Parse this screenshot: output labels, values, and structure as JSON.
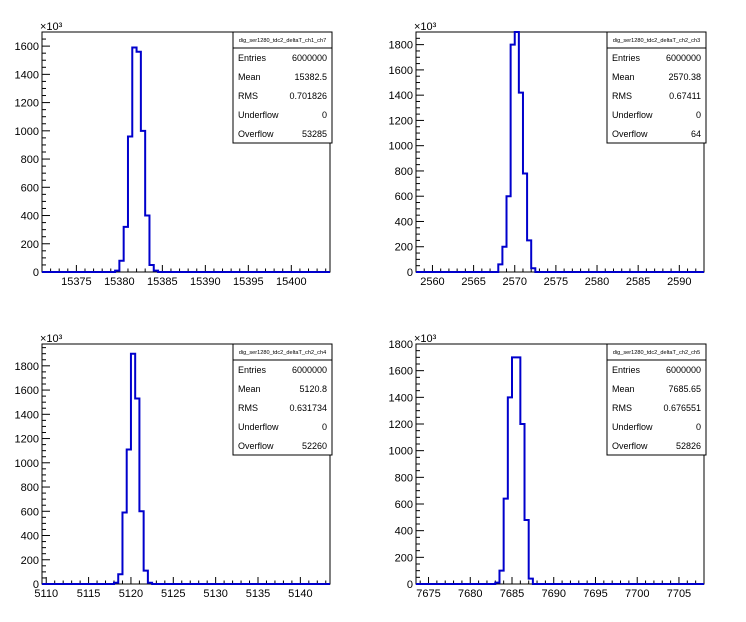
{
  "chart_data": [
    {
      "type": "histogram",
      "stats": {
        "title": "dig_ser1280_tdc2_deltaT_ch1_ch7",
        "rows": [
          {
            "label": "Entries",
            "value": "6000000"
          },
          {
            "label": "Mean",
            "value": "15382.5"
          },
          {
            "label": "RMS",
            "value": "0.701826"
          },
          {
            "label": "Underflow",
            "value": "0"
          },
          {
            "label": "Overflow",
            "value": "53285"
          }
        ]
      },
      "xlim": [
        15371,
        15404.5
      ],
      "ylim": [
        0,
        1700
      ],
      "y_multiplier_label": "×10³",
      "x_ticks": [
        15375,
        15380,
        15385,
        15390,
        15395,
        15400
      ],
      "y_ticks": [
        0,
        200,
        400,
        600,
        800,
        1000,
        1200,
        1400,
        1600
      ],
      "bin_width": 0.5,
      "bins_x0": [
        15379.5,
        15380,
        15380.5,
        15381,
        15381.5,
        15382,
        15382.5,
        15383,
        15383.5,
        15384,
        15384.5
      ],
      "bins_y": [
        10,
        80,
        320,
        960,
        1590,
        1560,
        1000,
        400,
        50,
        10,
        0
      ],
      "line_color": "#0000cc"
    },
    {
      "type": "histogram",
      "stats": {
        "title": "dig_ser1280_tdc2_deltaT_ch2_ch3",
        "rows": [
          {
            "label": "Entries",
            "value": "6000000"
          },
          {
            "label": "Mean",
            "value": "2570.38"
          },
          {
            "label": "RMS",
            "value": "0.67411"
          },
          {
            "label": "Underflow",
            "value": "0"
          },
          {
            "label": "Overflow",
            "value": "64"
          }
        ]
      },
      "xlim": [
        2558,
        2593
      ],
      "ylim": [
        0,
        1900
      ],
      "y_multiplier_label": "×10³",
      "x_ticks": [
        2560,
        2565,
        2570,
        2575,
        2580,
        2585,
        2590
      ],
      "y_ticks": [
        0,
        200,
        400,
        600,
        800,
        1000,
        1200,
        1400,
        1600,
        1800
      ],
      "bin_width": 0.5,
      "bins_x0": [
        2568,
        2568.5,
        2569,
        2569.5,
        2570,
        2570.5,
        2571,
        2571.5,
        2572,
        2572.5
      ],
      "bins_y": [
        60,
        200,
        600,
        1800,
        1900,
        1420,
        780,
        250,
        30,
        0
      ],
      "line_color": "#0000cc"
    },
    {
      "type": "histogram",
      "stats": {
        "title": "dig_ser1280_tdc2_deltaT_ch2_ch4",
        "rows": [
          {
            "label": "Entries",
            "value": "6000000"
          },
          {
            "label": "Mean",
            "value": "5120.8"
          },
          {
            "label": "RMS",
            "value": "0.631734"
          },
          {
            "label": "Underflow",
            "value": "0"
          },
          {
            "label": "Overflow",
            "value": "52260"
          }
        ]
      },
      "xlim": [
        5109.5,
        5143.5
      ],
      "ylim": [
        0,
        1980
      ],
      "y_multiplier_label": "×10³",
      "x_ticks": [
        5110,
        5115,
        5120,
        5125,
        5130,
        5135,
        5140
      ],
      "y_ticks": [
        0,
        200,
        400,
        600,
        800,
        1000,
        1200,
        1400,
        1600,
        1800
      ],
      "bin_width": 0.5,
      "bins_x0": [
        5118,
        5118.5,
        5119,
        5119.5,
        5120,
        5120.5,
        5121,
        5121.5,
        5122,
        5122.5
      ],
      "bins_y": [
        10,
        80,
        590,
        1110,
        1900,
        1530,
        600,
        110,
        10,
        0
      ],
      "line_color": "#0000cc"
    },
    {
      "type": "histogram",
      "stats": {
        "title": "dig_ser1280_tdc2_deltaT_ch2_ch5",
        "rows": [
          {
            "label": "Entries",
            "value": "6000000"
          },
          {
            "label": "Mean",
            "value": "7685.65"
          },
          {
            "label": "RMS",
            "value": "0.676551"
          },
          {
            "label": "Underflow",
            "value": "0"
          },
          {
            "label": "Overflow",
            "value": "52826"
          }
        ]
      },
      "xlim": [
        7673.5,
        7708
      ],
      "ylim": [
        0,
        1800
      ],
      "y_multiplier_label": "×10³",
      "x_ticks": [
        7675,
        7680,
        7685,
        7690,
        7695,
        7700,
        7705
      ],
      "y_ticks": [
        0,
        200,
        400,
        600,
        800,
        1000,
        1200,
        1400,
        1600,
        1800
      ],
      "bin_width": 0.5,
      "bins_x0": [
        7683,
        7683.5,
        7684,
        7684.5,
        7685,
        7685.5,
        7686,
        7686.5,
        7687,
        7687.5
      ],
      "bins_y": [
        10,
        100,
        640,
        1400,
        1700,
        1700,
        1200,
        480,
        40,
        0
      ],
      "line_color": "#0000cc"
    }
  ]
}
